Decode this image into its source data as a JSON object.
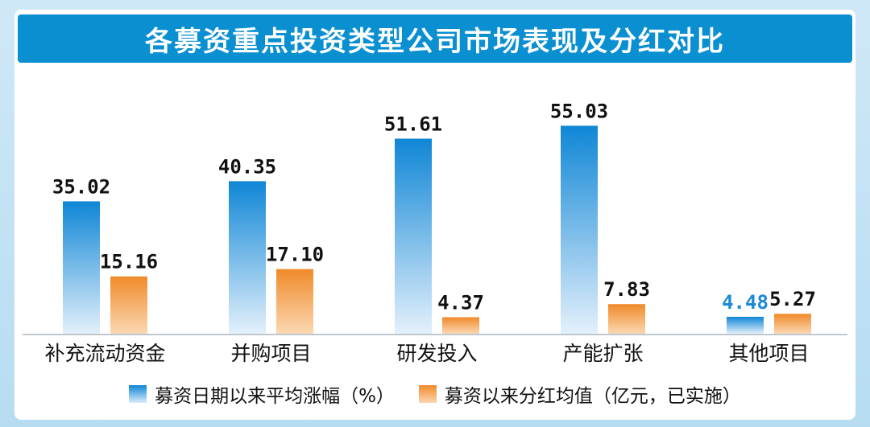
{
  "title": "各募资重点投资类型公司市场表现及分红对比",
  "colors": {
    "blue_top": "#0f86d6",
    "blue_bottom": "#e3f0fb",
    "orange_top": "#f08a2a",
    "orange_bottom": "#fbd8b2",
    "title_bar": "#0a8fd1"
  },
  "legend": {
    "series1": "募资日期以来平均涨幅（%）",
    "series2": "募资以来分红均值（亿元，已实施）"
  },
  "chart_data": {
    "type": "bar",
    "categories": [
      "补充流动资金",
      "并购项目",
      "研发投入",
      "产能扩张",
      "其他项目"
    ],
    "series": [
      {
        "name": "募资日期以来平均涨幅（%）",
        "values": [
          35.02,
          40.35,
          51.61,
          55.03,
          4.48
        ],
        "labels": [
          "35.02",
          "40.35",
          "51.61",
          "55.03",
          "4.48"
        ]
      },
      {
        "name": "募资以来分红均值（亿元，已实施）",
        "values": [
          15.16,
          17.1,
          4.37,
          7.83,
          5.27
        ],
        "labels": [
          "15.16",
          "17.10",
          "4.37",
          "7.83",
          "5.27"
        ]
      }
    ],
    "ylim": [
      0,
      60
    ],
    "grid": false,
    "legend_position": "bottom"
  }
}
